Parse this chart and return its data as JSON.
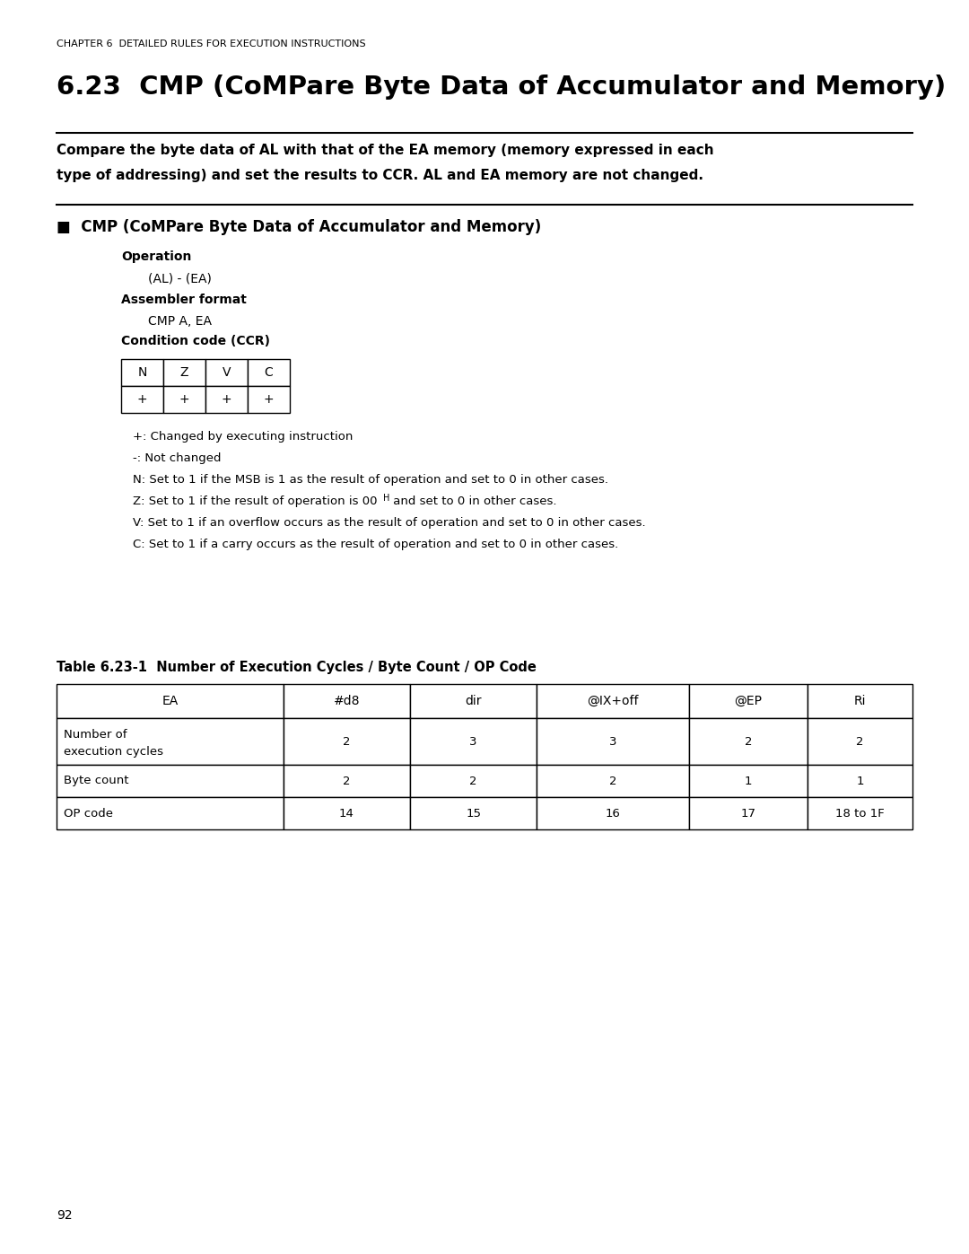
{
  "page_num": "92",
  "chapter_header": "CHAPTER 6  DETAILED RULES FOR EXECUTION INSTRUCTIONS",
  "section_title": "6.23  CMP (CoMPare Byte Data of Accumulator and Memory)",
  "desc_line1": "Compare the byte data of AL with that of the EA memory (memory expressed in each",
  "desc_line2": "type of addressing) and set the results to CCR. AL and EA memory are not changed.",
  "subsection_title": "■  CMP (CoMPare Byte Data of Accumulator and Memory)",
  "operation_label": "Operation",
  "operation_value": "(AL) - (EA)",
  "assembler_label": "Assembler format",
  "assembler_value": "CMP A, EA",
  "condition_label": "Condition code (CCR)",
  "ccr_headers": [
    "N",
    "Z",
    "V",
    "C"
  ],
  "ccr_values": [
    "+",
    "+",
    "+",
    "+"
  ],
  "legend_lines": [
    "+: Changed by executing instruction",
    "-: Not changed",
    "N: Set to 1 if the MSB is 1 as the result of operation and set to 0 in other cases.",
    "Z: Set to 1 if the result of operation is 00",
    "H",
    " and set to 0 in other cases.",
    "V: Set to 1 if an overflow occurs as the result of operation and set to 0 in other cases.",
    "C: Set to 1 if a carry occurs as the result of operation and set to 0 in other cases."
  ],
  "table_title": "Table 6.23-1  Number of Execution Cycles / Byte Count / OP Code",
  "table_col_headers": [
    "EA",
    "#d8",
    "dir",
    "@IX+off",
    "@EP",
    "Ri"
  ],
  "table_rows": [
    [
      "Number of\nexecution cycles",
      "2",
      "3",
      "3",
      "2",
      "2"
    ],
    [
      "Byte count",
      "2",
      "2",
      "2",
      "1",
      "1"
    ],
    [
      "OP code",
      "14",
      "15",
      "16",
      "17",
      "18 to 1F"
    ]
  ],
  "bg_color": "#ffffff"
}
